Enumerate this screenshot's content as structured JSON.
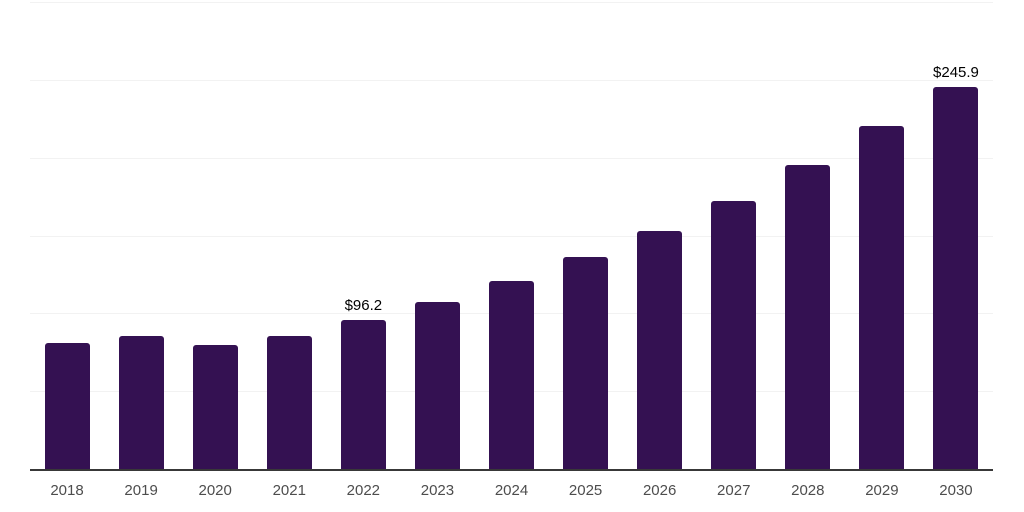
{
  "chart_data": {
    "type": "bar",
    "title": "",
    "xlabel": "",
    "ylabel": "",
    "categories": [
      "2018",
      "2019",
      "2020",
      "2021",
      "2022",
      "2023",
      "2024",
      "2025",
      "2026",
      "2027",
      "2028",
      "2029",
      "2030"
    ],
    "values": [
      81.5,
      86.0,
      80.5,
      86.0,
      96.2,
      108.2,
      121.5,
      136.6,
      153.6,
      172.7,
      196.0,
      221.0,
      245.9
    ],
    "data_labels": [
      {
        "category": "2022",
        "text": "$96.2"
      },
      {
        "category": "2030",
        "text": "$245.9"
      }
    ],
    "ylim": [
      0,
      300
    ],
    "gridline_step": 50,
    "grid": "horizontal-only",
    "legend_position": "none",
    "colors": {
      "bar": "#341152",
      "gridline": "#f2f2f2",
      "axis_line": "#383838",
      "tick_label": "#4d4d4d",
      "data_label": "#000000",
      "background": "#ffffff"
    }
  }
}
